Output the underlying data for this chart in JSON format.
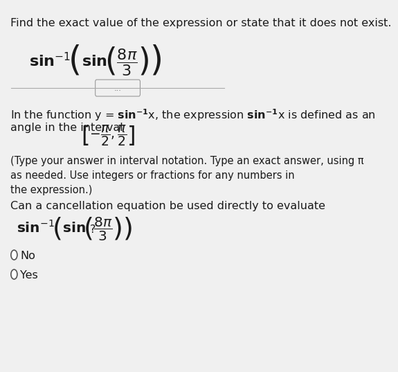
{
  "background_color": "#f0f0f0",
  "title_text": "Find the exact value of the expression or state that it does not exist.",
  "title_fontsize": 11.5,
  "main_expr": "sin$^{-1}$\\left( sin $\\left(\\dfrac{8\\pi}{3}\\right)$ \\right)",
  "separator_dots": "...",
  "body_line1": "In the function y = ",
  "body_bold1": "sin",
  "body_line1b": "$^{-1}$x, the expression ",
  "body_bold2": "sin",
  "body_line1c": "$^{-1}$x is defined as an",
  "body_line2": "angle in the interval",
  "interval_text": "$\\left[-\\dfrac{\\pi}{2}, \\dfrac{\\pi}{2}\\right]$",
  "note_text": "(Type your answer in interval notation. Type an exact answer, using π\nas needed. Use integers or fractions for any numbers in\nthe expression.)",
  "cancel_text": "Can a cancellation equation be used directly to evaluate",
  "cancel_expr_q": "?",
  "radio_no": "No",
  "radio_yes": "Yes",
  "text_color": "#1a1a1a",
  "radio_color": "#555555",
  "body_fontsize": 11.5,
  "note_fontsize": 10.5,
  "expr_fontsize": 14
}
